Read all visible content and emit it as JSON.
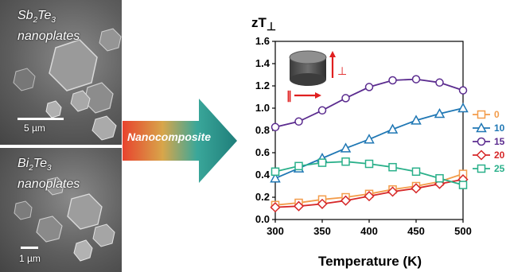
{
  "panels": {
    "top": {
      "label_base": "Sb",
      "label_sub1": "2",
      "label_mid": "Te",
      "label_sub2": "3",
      "label_line2": "nanoplates",
      "scale": "5 µm"
    },
    "bottom": {
      "label_base": "Bi",
      "label_sub1": "2",
      "label_mid": "Te",
      "label_sub2": "3",
      "label_line2": "nanoplates",
      "scale": "1 µm"
    }
  },
  "arrow": {
    "label": "Nanocomposite"
  },
  "inset": {
    "perp_symbol": "⊥",
    "parallel_symbol": "∥"
  },
  "chart_data": {
    "type": "line",
    "ylabel_main": "zT",
    "ylabel_sub": "⊥",
    "xlabel": "Temperature (K)",
    "xlim": [
      300,
      500
    ],
    "ylim": [
      0,
      1.6
    ],
    "xticks": [
      "300",
      "350",
      "400",
      "450",
      "500"
    ],
    "yticks": [
      "0.0",
      "0.2",
      "0.4",
      "0.6",
      "0.8",
      "1.0",
      "1.2",
      "1.4",
      "1.6"
    ],
    "x": [
      300,
      325,
      350,
      375,
      400,
      425,
      450,
      475,
      500
    ],
    "series": [
      {
        "name": "0",
        "marker": "square",
        "color": "#f39c4a",
        "values": [
          0.13,
          0.15,
          0.18,
          0.2,
          0.23,
          0.27,
          0.3,
          0.34,
          0.41
        ]
      },
      {
        "name": "10",
        "marker": "triangle",
        "color": "#1f77b4",
        "values": [
          0.37,
          0.46,
          0.55,
          0.64,
          0.72,
          0.81,
          0.89,
          0.95,
          1.0
        ]
      },
      {
        "name": "15",
        "marker": "circle",
        "color": "#5b2c8f",
        "values": [
          0.83,
          0.88,
          0.98,
          1.09,
          1.19,
          1.25,
          1.26,
          1.23,
          1.16
        ]
      },
      {
        "name": "20",
        "marker": "diamond",
        "color": "#d62728",
        "values": [
          0.11,
          0.12,
          0.14,
          0.17,
          0.21,
          0.25,
          0.28,
          0.32,
          0.36
        ]
      },
      {
        "name": "25",
        "marker": "square",
        "color": "#2ab08a",
        "values": [
          0.43,
          0.48,
          0.51,
          0.52,
          0.5,
          0.47,
          0.43,
          0.37,
          0.31
        ]
      }
    ]
  }
}
